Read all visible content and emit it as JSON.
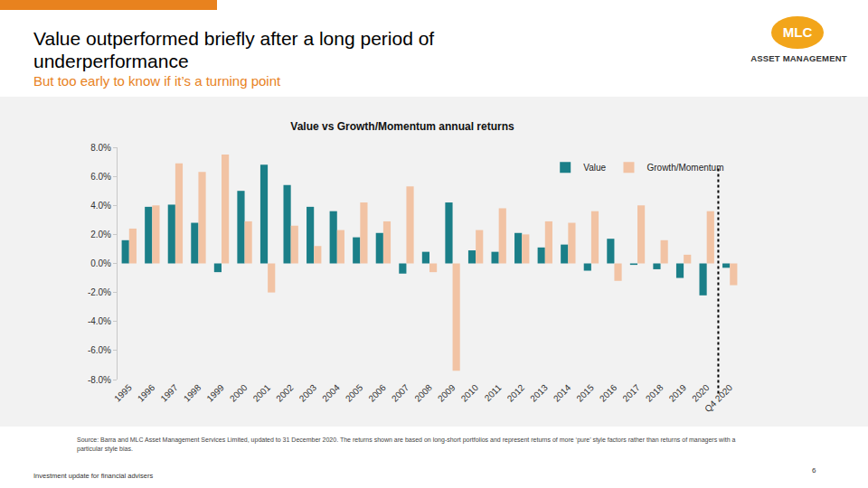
{
  "title_lines": [
    "Value outperformed briefly after a long period of",
    "underperformance"
  ],
  "subtitle": "But too early to know if it’s a turning point",
  "logo": {
    "mark": "MLC",
    "text": "ASSET MANAGEMENT"
  },
  "source": "Source: Barra and MLC Asset Management Services Limited, updated to 31 December 2020. The returns shown are based on long-short portfolios and represent returns of more ‘pure’ style factors rather than returns of managers with a particular style bias.",
  "footer": "Investment update for financial advisers",
  "page": "6",
  "chart_data": {
    "type": "bar",
    "title": "Value vs Growth/Momentum annual returns",
    "categories": [
      "1995",
      "1996",
      "1997",
      "1998",
      "1999",
      "2000",
      "2001",
      "2002",
      "2003",
      "2004",
      "2005",
      "2006",
      "2007",
      "2008",
      "2009",
      "2010",
      "2011",
      "2012",
      "2013",
      "2014",
      "2015",
      "2016",
      "2017",
      "2018",
      "2019",
      "2020",
      "Q4 2020"
    ],
    "series": [
      {
        "name": "Value",
        "color": "#1B7F88",
        "values": [
          1.6,
          3.9,
          4.05,
          2.8,
          -0.6,
          5.0,
          6.8,
          5.4,
          3.9,
          3.6,
          1.8,
          2.1,
          -0.7,
          0.8,
          4.2,
          0.9,
          0.8,
          2.1,
          1.1,
          1.3,
          -0.5,
          1.7,
          -0.1,
          -0.4,
          -1.0,
          -2.2,
          -0.3
        ]
      },
      {
        "name": "Growth/Momentum",
        "color": "#F2C3A4",
        "values": [
          2.4,
          4.0,
          6.9,
          6.3,
          7.5,
          2.9,
          -2.0,
          2.6,
          1.2,
          2.3,
          4.2,
          2.9,
          5.3,
          -0.6,
          -7.4,
          2.3,
          3.8,
          2.0,
          2.9,
          2.8,
          3.6,
          -1.2,
          4.0,
          1.6,
          0.6,
          3.6,
          -1.5
        ]
      }
    ],
    "ylim": [
      -8,
      8
    ],
    "yticks": [
      {
        "value": -8,
        "label": "-8.0%"
      },
      {
        "value": -6,
        "label": "-6.0%"
      },
      {
        "value": -4,
        "label": "-4.0%"
      },
      {
        "value": -2,
        "label": "-2.0%"
      },
      {
        "value": 0,
        "label": "0.0%"
      },
      {
        "value": 2,
        "label": "2.0%"
      },
      {
        "value": 4,
        "label": "4.0%"
      },
      {
        "value": 6,
        "label": "6.0%"
      },
      {
        "value": 8,
        "label": "8.0%"
      }
    ],
    "grid": false,
    "legend": "top right"
  }
}
